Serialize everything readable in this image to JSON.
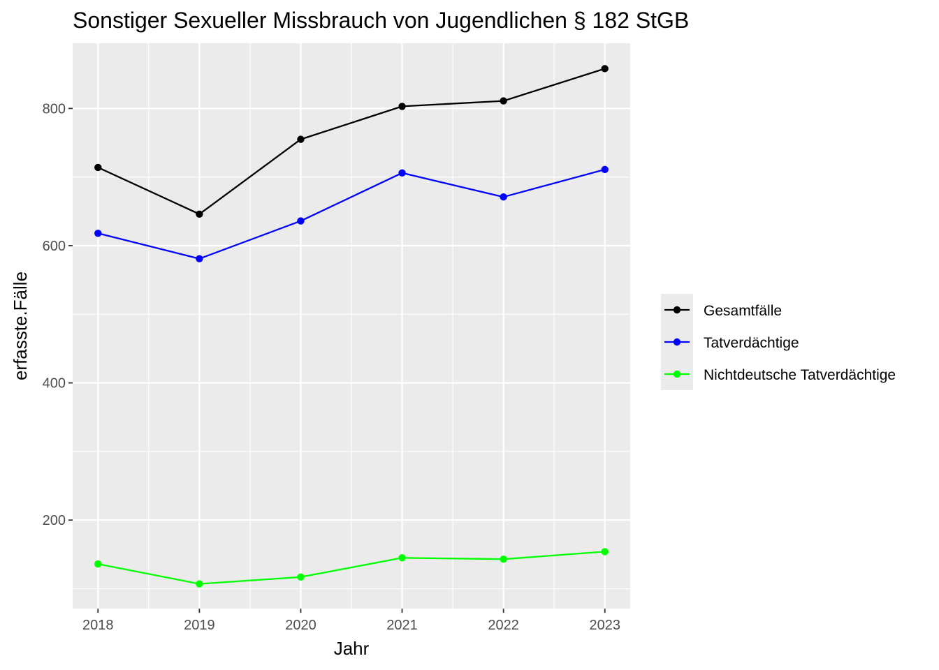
{
  "chart_data": {
    "type": "line",
    "title": "Sonstiger Sexueller Missbrauch von Jugendlichen § 182 StGB",
    "xlabel": "Jahr",
    "ylabel": "erfasste.Fälle",
    "x": [
      2018,
      2019,
      2020,
      2021,
      2022,
      2023
    ],
    "x_tick_labels": [
      "2018",
      "2019",
      "2020",
      "2021",
      "2022",
      "2023"
    ],
    "xlim": [
      2017.75,
      2023.25
    ],
    "ylim": [
      71,
      895
    ],
    "y_ticks": [
      200,
      400,
      600,
      800
    ],
    "y_tick_labels": [
      "200",
      "400",
      "600",
      "800"
    ],
    "grid": true,
    "legend_position": "right",
    "series": [
      {
        "name": "Gesamtfälle",
        "color": "#000000",
        "values": [
          714,
          646,
          755,
          803,
          811,
          858
        ]
      },
      {
        "name": "Tatverdächtige",
        "color": "#0000ff",
        "values": [
          618,
          581,
          636,
          706,
          671,
          711
        ]
      },
      {
        "name": "Nichtdeutsche Tatverdächtige",
        "color": "#00ff00",
        "values": [
          136,
          107,
          117,
          145,
          143,
          154
        ]
      }
    ]
  },
  "style": {
    "panel_background": "#ebebeb",
    "grid_color": "#ffffff"
  }
}
